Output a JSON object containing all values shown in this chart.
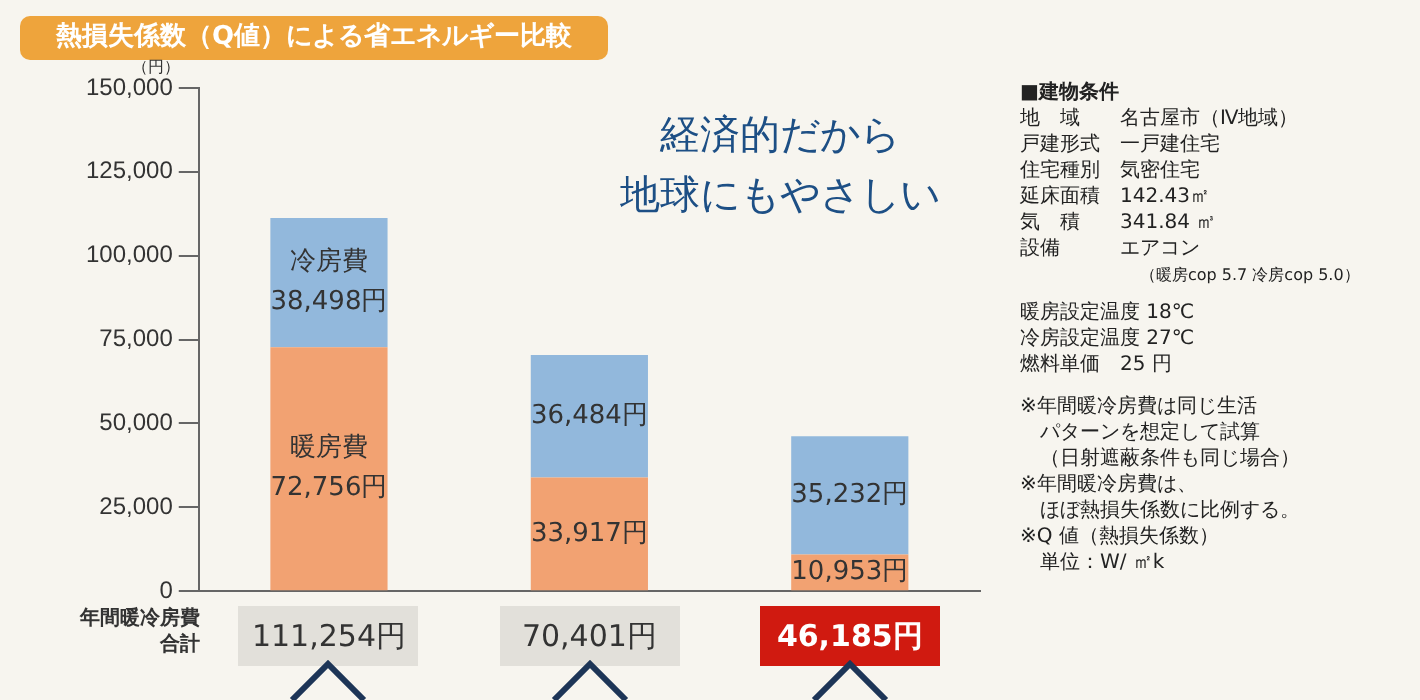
{
  "chart_data": {
    "type": "bar",
    "title": "熱損失係数（Q値）による省エネルギー比較",
    "ylabel": "（円）",
    "categories": [
      null,
      null,
      null
    ],
    "stacked": true,
    "ylim": [
      0,
      150000
    ],
    "yticks": [
      {
        "value": 0,
        "label": "0"
      },
      {
        "value": 25000,
        "label": "25,000"
      },
      {
        "value": 50000,
        "label": "50,000"
      },
      {
        "value": 75000,
        "label": "75,000"
      },
      {
        "value": 100000,
        "label": "100,000"
      },
      {
        "value": 125000,
        "label": "125,000"
      },
      {
        "value": 150000,
        "label": "150,000"
      }
    ],
    "grid": false,
    "legend": false,
    "series": [
      {
        "name": "暖房費",
        "color": "#f2a272",
        "values": [
          72756,
          33917,
          10953
        ],
        "value_labels": [
          "72,756円",
          "33,917円",
          "10,953円"
        ]
      },
      {
        "name": "冷房費",
        "color": "#92b8dc",
        "values": [
          38498,
          36484,
          35232
        ],
        "value_labels": [
          "38,498円",
          "36,484円",
          "35,232円"
        ]
      }
    ],
    "totals": [
      "111,254円",
      "70,401円",
      "46,185円"
    ],
    "annotations": [
      "経済的だから",
      "地球にもやさしい",
      "年間暖冷房費",
      "合計",
      "■建物条件",
      "地　域　　名古屋市（Ⅳ地域）",
      "戸建形式　一戸建住宅",
      "住宅種別　気密住宅",
      "延床面積　142.43㎡",
      "気　積　　341.84 ㎥",
      "設備　　　エアコン",
      "（暖房cop 5.7 冷房cop 5.0）",
      "暖房設定温度 18℃",
      "冷房設定温度 27℃",
      "燃料単価　25 円",
      "※年間暖冷房費は同じ生活",
      "パターンを想定して試算",
      "（日射遮蔽条件も同じ場合）",
      "※年間暖冷房費は、",
      "ほぼ熱損失係数に比例する。",
      "※Q 値（熱損失係数）",
      "単位：W/ ㎡k"
    ]
  }
}
